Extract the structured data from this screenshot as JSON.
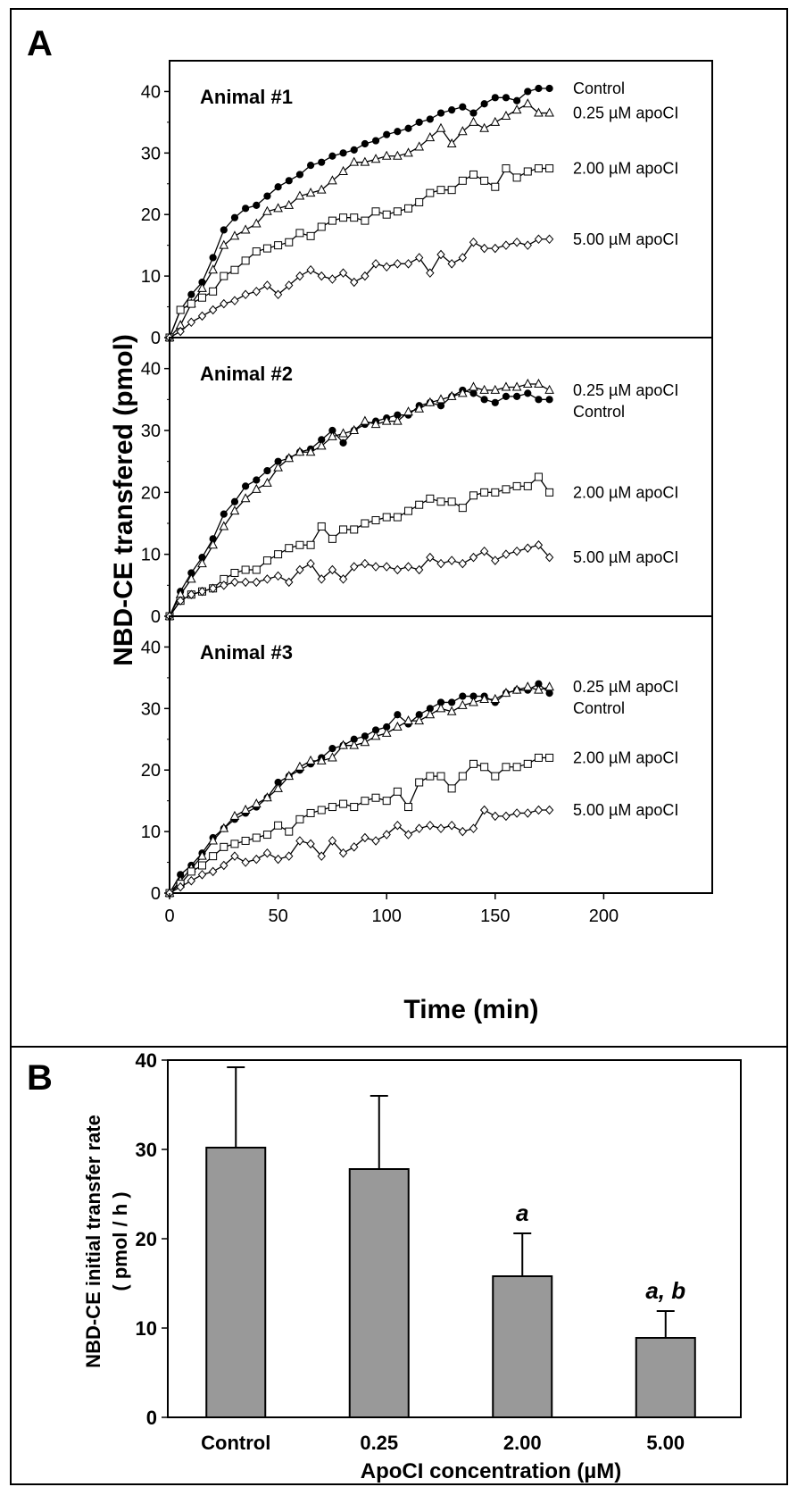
{
  "figure": {
    "panel_a_label": "A",
    "panel_b_label": "B",
    "colors": {
      "bar_fill": "#999999",
      "line": "#000000",
      "background": "#ffffff"
    }
  },
  "chart_data": [
    {
      "type": "line",
      "panel": "A",
      "subtitle": "Animal #1",
      "xlabel": "Time (min)",
      "ylabel": "NBD-CE transfered (pmol)",
      "xlim": [
        0,
        250
      ],
      "ylim": [
        0,
        45
      ],
      "xticks": [
        "0",
        "50",
        "100",
        "150",
        "200"
      ],
      "yticks": [
        "0",
        "10",
        "20",
        "30",
        "40"
      ],
      "x": [
        0,
        5,
        10,
        15,
        20,
        25,
        30,
        35,
        40,
        45,
        50,
        55,
        60,
        65,
        70,
        75,
        80,
        85,
        90,
        95,
        100,
        105,
        110,
        115,
        120,
        125,
        130,
        135,
        140,
        145,
        150,
        155,
        160,
        165,
        170,
        175
      ],
      "series": [
        {
          "name": "Control",
          "marker": "filled-circle",
          "values": [
            0,
            4.5,
            7,
            9,
            13,
            17.5,
            19.5,
            21,
            21.5,
            23,
            24.5,
            25.5,
            26.5,
            28,
            28.5,
            29.5,
            30,
            30.5,
            31.5,
            32,
            33,
            33.5,
            34,
            35,
            35.5,
            36.5,
            37,
            37.5,
            36.5,
            38,
            39,
            39,
            38.5,
            40,
            40.5,
            40.5
          ]
        },
        {
          "name": "0.25 µM apoCI",
          "marker": "open-triangle",
          "values": [
            0,
            2,
            5.5,
            8,
            11,
            15,
            16.5,
            17.5,
            18.5,
            20.5,
            21,
            21.5,
            23,
            23.5,
            24,
            25.5,
            27,
            28.5,
            28.5,
            29,
            29.5,
            29.5,
            30,
            31,
            32.5,
            34,
            31.5,
            33.5,
            35,
            34,
            35,
            36,
            37,
            38,
            36.5,
            36.5
          ]
        },
        {
          "name": "2.00 µM apoCI",
          "marker": "open-square",
          "values": [
            0,
            4.5,
            5.5,
            6.5,
            7.5,
            10,
            11,
            12.5,
            14,
            14.5,
            15,
            15.5,
            17,
            16.5,
            18,
            19,
            19.5,
            19.5,
            19,
            20.5,
            20,
            20.5,
            21,
            22,
            23.5,
            24,
            24,
            25.5,
            26.5,
            25.5,
            24.5,
            27.5,
            26,
            27,
            27.5,
            27.5
          ]
        },
        {
          "name": "5.00 µM apoCI",
          "marker": "open-diamond",
          "values": [
            0,
            1,
            2.5,
            3.5,
            4.5,
            5.5,
            6,
            7,
            7.5,
            8.5,
            7,
            8.5,
            10,
            11,
            10,
            9.5,
            10.5,
            9,
            10,
            12,
            11.5,
            12,
            12,
            13,
            10.5,
            13.5,
            12,
            13,
            15.5,
            14.5,
            14.5,
            15,
            15.5,
            15,
            16,
            16
          ]
        }
      ]
    },
    {
      "type": "line",
      "panel": "A",
      "subtitle": "Animal #2",
      "xlabel": "Time (min)",
      "ylabel": "NBD-CE transfered (pmol)",
      "xlim": [
        0,
        250
      ],
      "ylim": [
        0,
        45
      ],
      "xticks": [
        "0",
        "50",
        "100",
        "150",
        "200"
      ],
      "yticks": [
        "0",
        "10",
        "20",
        "30",
        "40"
      ],
      "x": [
        0,
        5,
        10,
        15,
        20,
        25,
        30,
        35,
        40,
        45,
        50,
        55,
        60,
        65,
        70,
        75,
        80,
        85,
        90,
        95,
        100,
        105,
        110,
        115,
        120,
        125,
        130,
        135,
        140,
        145,
        150,
        155,
        160,
        165,
        170,
        175
      ],
      "series": [
        {
          "name": "Control",
          "marker": "filled-circle",
          "values": [
            0,
            4,
            7,
            9.5,
            12.5,
            16.5,
            18.5,
            21,
            22,
            23.5,
            25,
            25.5,
            26.5,
            27,
            28.5,
            30,
            28,
            30,
            31,
            31.5,
            32,
            32.5,
            32.5,
            34,
            34.5,
            34,
            35.5,
            36.5,
            36,
            35,
            34.5,
            35.5,
            35.5,
            36,
            35,
            35
          ]
        },
        {
          "name": "0.25 µM apoCI",
          "marker": "open-triangle",
          "values": [
            0,
            3.5,
            6,
            8.5,
            11.5,
            14.5,
            17,
            19,
            20.5,
            21.5,
            24,
            25.5,
            26.5,
            26.5,
            27.5,
            29,
            29.5,
            30,
            31.5,
            31,
            31.5,
            31.5,
            33,
            33.5,
            34.5,
            35,
            35.5,
            36,
            37,
            36.5,
            36.5,
            37,
            37,
            37.5,
            37.5,
            36.5
          ]
        },
        {
          "name": "2.00 µM apoCI",
          "marker": "open-square",
          "values": [
            0,
            2.5,
            3.5,
            4,
            4.5,
            6,
            7,
            7.5,
            7.5,
            9,
            10,
            11,
            11.5,
            11.5,
            14.5,
            12.5,
            14,
            14,
            15,
            15.5,
            16,
            16,
            17,
            18,
            19,
            18.5,
            18.5,
            17.5,
            19.5,
            20,
            20,
            20.5,
            21,
            21,
            22.5,
            20
          ]
        },
        {
          "name": "5.00 µM apoCI",
          "marker": "open-diamond",
          "values": [
            0,
            2.5,
            3.5,
            4,
            4.5,
            5,
            5.5,
            5.5,
            5.5,
            6,
            6.5,
            5.5,
            7.5,
            8.5,
            6,
            7.5,
            6,
            8,
            8.5,
            8,
            8,
            7.5,
            8,
            7.5,
            9.5,
            8.5,
            9,
            8.5,
            9.5,
            10.5,
            9,
            10,
            10.5,
            11,
            11.5,
            9.5
          ]
        }
      ]
    },
    {
      "type": "line",
      "panel": "A",
      "subtitle": "Animal #3",
      "xlabel": "Time (min)",
      "ylabel": "NBD-CE transfered (pmol)",
      "xlim": [
        0,
        250
      ],
      "ylim": [
        0,
        45
      ],
      "xticks": [
        "0",
        "50",
        "100",
        "150",
        "200"
      ],
      "yticks": [
        "0",
        "10",
        "20",
        "30",
        "40"
      ],
      "x": [
        0,
        5,
        10,
        15,
        20,
        25,
        30,
        35,
        40,
        45,
        50,
        55,
        60,
        65,
        70,
        75,
        80,
        85,
        90,
        95,
        100,
        105,
        110,
        115,
        120,
        125,
        130,
        135,
        140,
        145,
        150,
        155,
        160,
        165,
        170,
        175
      ],
      "series": [
        {
          "name": "Control",
          "marker": "filled-circle",
          "values": [
            0,
            3,
            4.5,
            6.5,
            9,
            10.5,
            12,
            13,
            14,
            15.5,
            18,
            19,
            20,
            21,
            22,
            23.5,
            24,
            25,
            25.5,
            26.5,
            27,
            29,
            27.5,
            29,
            30,
            31,
            31,
            32,
            32,
            32,
            31,
            32.5,
            33,
            33,
            34,
            32.5
          ]
        },
        {
          "name": "0.25 µM apoCI",
          "marker": "open-triangle",
          "values": [
            0,
            2,
            4,
            6,
            8.5,
            10.5,
            12.5,
            13.5,
            14.5,
            15.5,
            17,
            19,
            20.5,
            21.5,
            21.5,
            22,
            24,
            24,
            24.5,
            25.5,
            26,
            27,
            28,
            28,
            29,
            30,
            29.5,
            30.5,
            31,
            31.5,
            31.5,
            32.5,
            33,
            33.5,
            33,
            33.5
          ]
        },
        {
          "name": "2.00 µM apoCI",
          "marker": "open-square",
          "values": [
            0,
            1.5,
            3.5,
            4.5,
            6,
            7.5,
            8,
            8.5,
            9,
            9.5,
            11,
            10,
            12,
            13,
            13.5,
            14,
            14.5,
            14,
            15,
            15.5,
            15,
            16.5,
            14,
            18,
            19,
            19,
            17,
            19,
            21,
            20.5,
            19,
            20.5,
            20.5,
            21,
            22,
            22
          ]
        },
        {
          "name": "5.00 µM apoCI",
          "marker": "open-diamond",
          "values": [
            0,
            1,
            2,
            3,
            3.5,
            4.5,
            6,
            5,
            5.5,
            6.5,
            5.5,
            6,
            8.5,
            8,
            6,
            8.5,
            6.5,
            7.5,
            9,
            8.5,
            9.5,
            11,
            9.5,
            10.5,
            11,
            10.5,
            11,
            10,
            10.5,
            13.5,
            12.5,
            12.5,
            13,
            13,
            13.5,
            13.5
          ]
        }
      ]
    },
    {
      "type": "bar",
      "panel": "B",
      "categories": [
        "Control",
        "0.25",
        "2.00",
        "5.00"
      ],
      "values": [
        30.2,
        27.8,
        15.8,
        8.9
      ],
      "errors": [
        9.0,
        8.2,
        4.8,
        3.0
      ],
      "annotations": [
        "",
        "",
        "a",
        "a, b"
      ],
      "xlabel": "ApoCI concentration (µM)",
      "ylabel_line1": "NBD-CE initial transfer rate",
      "ylabel_line2": "( pmol / h )",
      "ylim": [
        0,
        40
      ],
      "yticks": [
        "0",
        "10",
        "20",
        "30",
        "40"
      ]
    }
  ]
}
